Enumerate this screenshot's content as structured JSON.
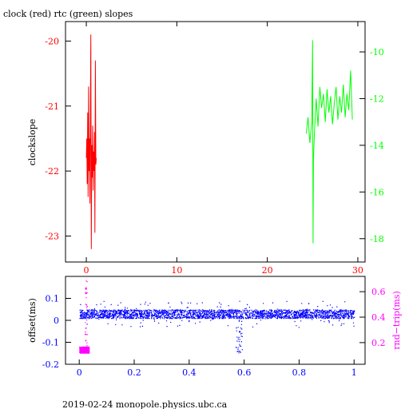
{
  "colors": {
    "clock": "#ff0000",
    "rtc": "#00ff00",
    "offset": "#0000ff",
    "rtt": "#ff00ff",
    "axis_main": "#000000"
  },
  "chart_data": [
    {
      "type": "line",
      "title": "clock (red) rtc (green) slopes",
      "ylabel": "clockslope",
      "xlim": [
        -2.3,
        30.8
      ],
      "xticks": [
        0,
        10,
        20,
        30
      ],
      "ylim": [
        -23.4,
        -19.7
      ],
      "yticks": [
        -23,
        -22,
        -21,
        -20
      ],
      "y2lim": [
        -19.0,
        -8.7
      ],
      "y2ticks": [
        -18,
        -16,
        -14,
        -12,
        -10
      ],
      "grid": false,
      "series": [
        {
          "axis": "left",
          "color_key": "clock",
          "x": [
            0.0,
            0.05,
            0.1,
            0.15,
            0.2,
            0.25,
            0.3,
            0.35,
            0.4,
            0.45,
            0.5,
            0.55,
            0.6,
            0.65,
            0.7,
            0.75,
            0.8,
            0.85,
            0.9,
            0.95,
            1.0,
            1.05,
            1.1
          ],
          "y": [
            -21.8,
            -21.5,
            -22.2,
            -21.1,
            -22.4,
            -20.7,
            -22.0,
            -21.5,
            -22.5,
            -21.0,
            -19.9,
            -23.2,
            -21.6,
            -22.1,
            -21.3,
            -22.3,
            -21.7,
            -22.0,
            -21.4,
            -22.95,
            -20.3,
            -21.9,
            -21.8
          ]
        },
        {
          "axis": "right",
          "color_key": "rtc",
          "x": [
            24.3,
            24.5,
            24.7,
            24.9,
            25.0,
            25.05,
            25.1,
            25.2,
            25.4,
            25.6,
            25.8,
            26.0,
            26.2,
            26.4,
            26.6,
            26.8,
            27.0,
            27.2,
            27.4,
            27.6,
            27.8,
            28.0,
            28.2,
            28.4,
            28.6,
            28.8,
            29.0,
            29.2,
            29.4
          ],
          "y": [
            -13.5,
            -12.8,
            -13.9,
            -13.0,
            -9.5,
            -18.2,
            -14.6,
            -13.5,
            -12.0,
            -13.2,
            -11.5,
            -12.4,
            -11.8,
            -13.0,
            -11.6,
            -12.6,
            -11.9,
            -13.1,
            -12.2,
            -11.5,
            -12.9,
            -11.9,
            -12.6,
            -11.4,
            -12.8,
            -11.8,
            -12.5,
            -10.8,
            -12.9
          ]
        }
      ]
    },
    {
      "type": "scatter",
      "ylabel": "offset(ms)",
      "y2label": "rnd−trip(ms)",
      "xlim": [
        -0.05,
        1.04
      ],
      "xticks": [
        0,
        0.2,
        0.4,
        0.6,
        0.8,
        1
      ],
      "ylim": [
        -0.2,
        0.2
      ],
      "yticks": [
        -0.2,
        -0.1,
        0,
        0.1
      ],
      "y2lim": [
        0.03,
        0.72
      ],
      "y2ticks": [
        0.2,
        0.4,
        0.6
      ],
      "grid": false,
      "offset_band": {
        "x_range": [
          0.0,
          1.0
        ],
        "center": 0.03,
        "half_width": 0.02
      },
      "offset_dip": {
        "x": 0.58,
        "min": -0.15
      },
      "rtt_cluster": {
        "x_range": [
          0.0,
          0.035
        ],
        "y_range": [
          0.12,
          0.17
        ],
        "spike_max": 0.7
      }
    }
  ],
  "footer": {
    "text": "2019-02-24 monopole.physics.ubc.ca"
  }
}
